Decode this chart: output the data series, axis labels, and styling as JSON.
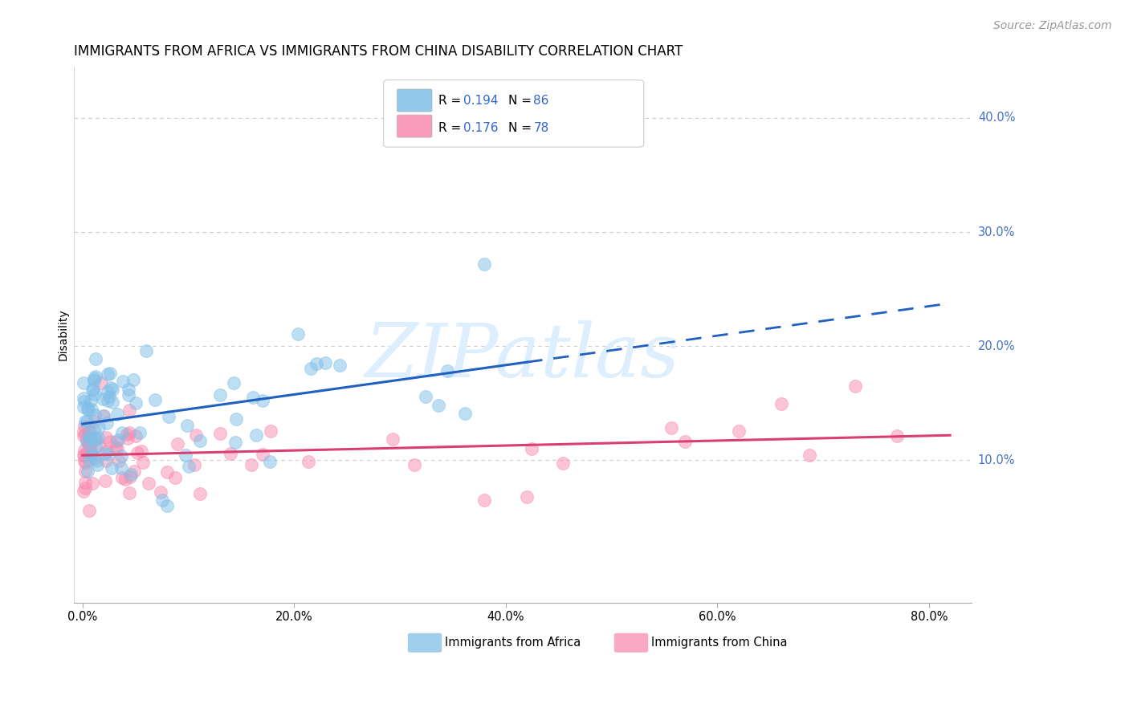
{
  "title": "IMMIGRANTS FROM AFRICA VS IMMIGRANTS FROM CHINA DISABILITY CORRELATION CHART",
  "source": "Source: ZipAtlas.com",
  "ylabel_label": "Disability",
  "xlim": [
    -0.008,
    0.84
  ],
  "ylim": [
    -0.025,
    0.445
  ],
  "africa_R": 0.194,
  "africa_N": 86,
  "china_R": 0.176,
  "china_N": 78,
  "africa_color": "#7fbfe8",
  "china_color": "#f98bb0",
  "africa_trend_color": "#2060c0",
  "china_trend_color": "#d94070",
  "background_color": "#ffffff",
  "grid_color": "#cccccc",
  "title_fontsize": 12,
  "source_fontsize": 10,
  "axis_label_fontsize": 10,
  "tick_fontsize": 10.5,
  "legend_fontsize": 11,
  "legend_value_color": "#3366cc",
  "right_axis_color": "#4472c4",
  "watermark_color": "#ddeeff",
  "africa_trend_x_solid_end": 0.42,
  "africa_trend_x_dash_end": 0.82,
  "china_trend_x_end": 0.82
}
